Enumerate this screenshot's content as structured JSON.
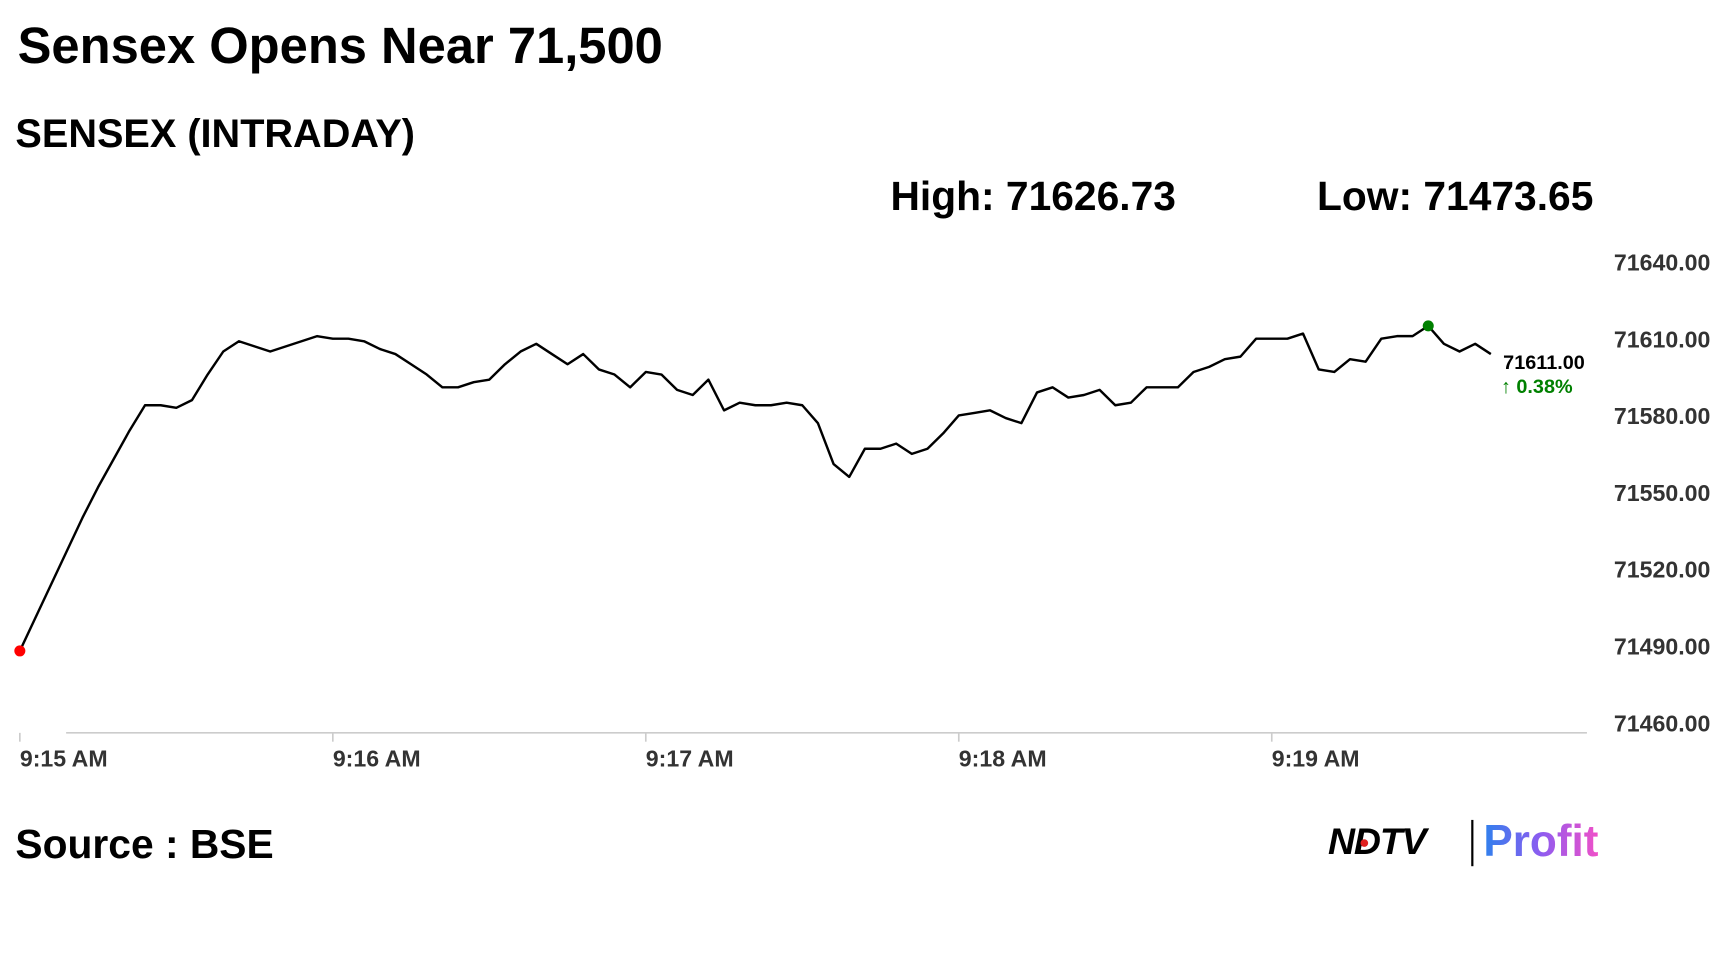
{
  "chart_data": {
    "type": "line",
    "title": "Sensex Opens Near 71,500",
    "subtitle": "SENSEX (INTRADAY)",
    "high_label": "High: 71626.73",
    "low_label": "Low: 71473.65",
    "last_price": "71611.00",
    "change": "↑ 0.38%",
    "change_color": "#008000",
    "source": "Source : BSE",
    "color": "#000000",
    "start_marker_color": "#ff0000",
    "high_marker_color": "#008000",
    "grid": false,
    "categories": [
      "9:15 AM",
      null,
      null,
      null,
      null,
      null,
      null,
      null,
      null,
      null,
      null,
      null,
      null,
      null,
      null,
      null,
      null,
      null,
      null,
      null,
      "9:16 AM",
      null,
      null,
      null,
      null,
      null,
      null,
      null,
      null,
      null,
      null,
      null,
      null,
      null,
      null,
      null,
      null,
      null,
      null,
      null,
      "9:17 AM",
      null,
      null,
      null,
      null,
      null,
      null,
      null,
      null,
      null,
      null,
      null,
      null,
      null,
      null,
      null,
      null,
      null,
      null,
      null,
      "9:18 AM",
      null,
      null,
      null,
      null,
      null,
      null,
      null,
      null,
      null,
      null,
      null,
      null,
      null,
      null,
      null,
      null,
      null,
      null,
      null,
      "9:19 AM",
      null,
      null,
      null,
      null,
      null,
      null,
      null,
      null,
      null,
      null,
      null,
      null,
      null,
      null
    ],
    "values": [
      71489,
      71502,
      71515,
      71528,
      71541,
      71553,
      71564,
      71575,
      71585,
      71585,
      71584,
      71587,
      71597,
      71606,
      71610,
      71608,
      71606,
      71608,
      71610,
      71612,
      71611,
      71611,
      71610,
      71607,
      71605,
      71601,
      71597,
      71592,
      71592,
      71594,
      71595,
      71601,
      71606,
      71609,
      71605,
      71601,
      71605,
      71599,
      71597,
      71592,
      71598,
      71597,
      71591,
      71589,
      71595,
      71583,
      71586,
      71585,
      71585,
      71586,
      71585,
      71578,
      71562,
      71557,
      71568,
      71568,
      71570,
      71566,
      71568,
      71574,
      71581,
      71582,
      71583,
      71580,
      71578,
      71590,
      71592,
      71588,
      71589,
      71591,
      71585,
      71586,
      71592,
      71592,
      71592,
      71598,
      71600,
      71603,
      71604,
      71611,
      71611,
      71611,
      71613,
      71599,
      71598,
      71603,
      71602,
      71611,
      71612,
      71612,
      71616,
      71609,
      71606,
      71609,
      71605
    ],
    "ylim": [
      71460,
      71640
    ],
    "yticks": [
      {
        "value": 71460,
        "label": "71460.00"
      },
      {
        "value": 71490,
        "label": "71490.00"
      },
      {
        "value": 71520,
        "label": "71520.00"
      },
      {
        "value": 71550,
        "label": "71550.00"
      },
      {
        "value": 71580,
        "label": "71580.00"
      },
      {
        "value": 71610,
        "label": "71610.00"
      },
      {
        "value": 71640,
        "label": "71640.00"
      }
    ]
  },
  "branding": {
    "brand": "NDTV",
    "product": "Profit"
  }
}
